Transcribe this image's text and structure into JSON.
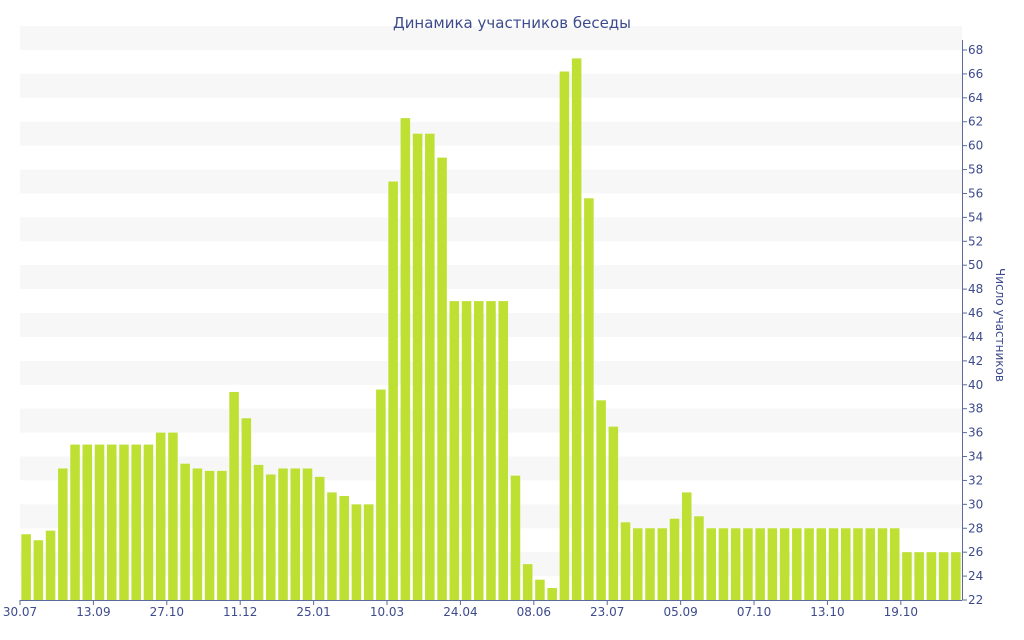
{
  "chart_data": {
    "type": "bar",
    "title": "Динамика участников беседы",
    "ylabel": "Число участников",
    "xlabel": "",
    "ylim": [
      22,
      68
    ],
    "ytick_step": 2,
    "bar_color": "#bde033",
    "band_color": "#f7f7f7",
    "text_color": "#3d4b8c",
    "x_tick_labels": [
      {
        "index": 0,
        "label": "30.07"
      },
      {
        "index": 6,
        "label": "13.09"
      },
      {
        "index": 12,
        "label": "27.10"
      },
      {
        "index": 18,
        "label": "11.12"
      },
      {
        "index": 24,
        "label": "25.01"
      },
      {
        "index": 30,
        "label": "10.03"
      },
      {
        "index": 36,
        "label": "24.04"
      },
      {
        "index": 42,
        "label": "08.06"
      },
      {
        "index": 48,
        "label": "23.07"
      },
      {
        "index": 54,
        "label": "05.09"
      },
      {
        "index": 60,
        "label": "07.10"
      },
      {
        "index": 66,
        "label": "13.10"
      },
      {
        "index": 72,
        "label": "19.10"
      }
    ],
    "values": [
      27.5,
      27,
      27.8,
      33,
      35,
      35,
      35,
      35,
      35,
      35,
      35,
      36,
      36,
      33.4,
      33,
      32.8,
      32.8,
      39.4,
      37.2,
      33.3,
      32.5,
      33,
      33,
      33,
      32.3,
      31,
      30.7,
      30,
      30,
      39.6,
      57,
      62.3,
      61,
      61,
      59,
      47,
      47,
      47,
      47,
      47,
      32.4,
      25,
      23.7,
      23,
      66.2,
      67.3,
      55.6,
      38.7,
      36.5,
      28.5,
      28,
      28,
      28,
      28.8,
      31,
      29,
      28,
      28,
      28,
      28,
      28,
      28,
      28,
      28,
      28,
      28,
      28,
      28,
      28,
      28,
      28,
      28,
      26,
      26,
      26,
      26,
      26
    ]
  }
}
